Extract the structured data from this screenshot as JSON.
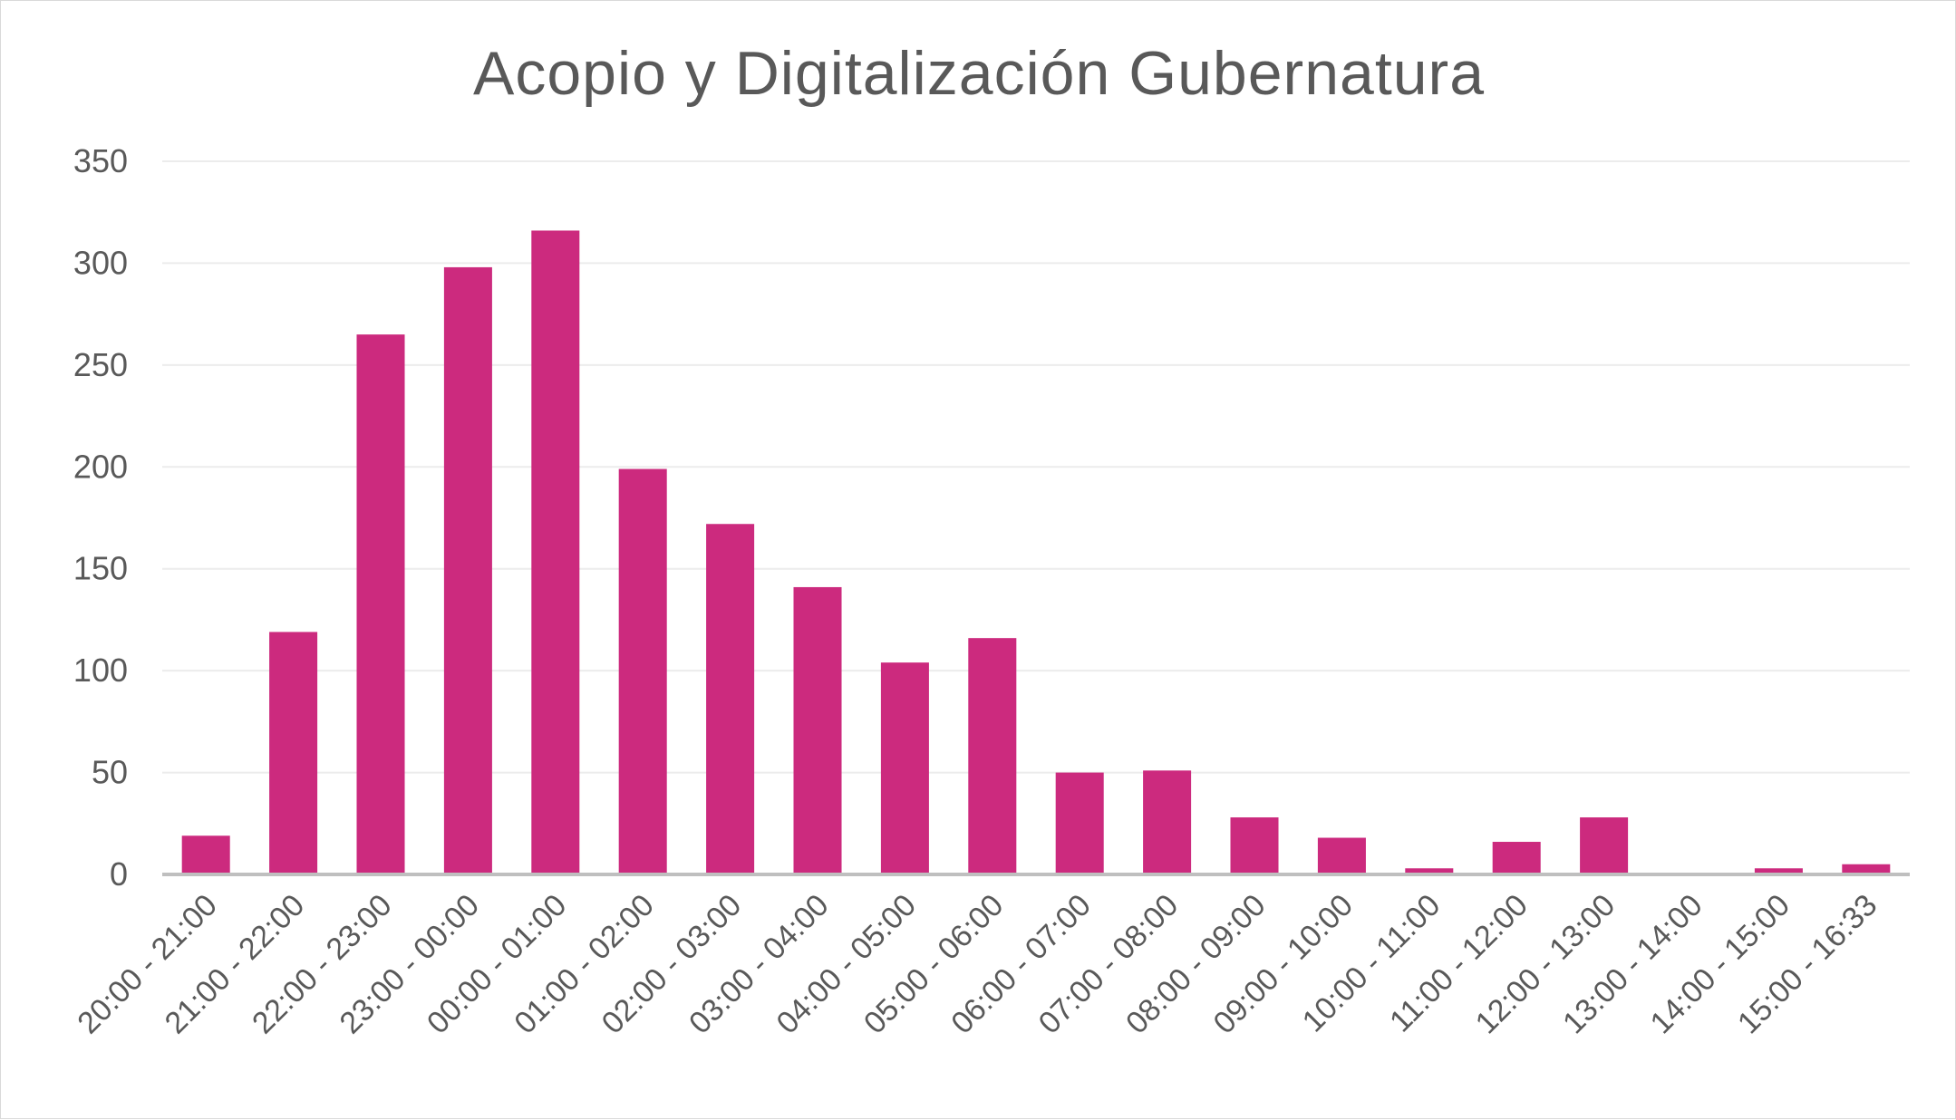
{
  "chart_data": {
    "type": "bar",
    "title": "Acopio y Digitalización Gubernatura",
    "xlabel": "",
    "ylabel": "",
    "categories": [
      "20:00 - 21:00",
      "21:00 - 22:00",
      "22:00 - 23:00",
      "23:00 - 00:00",
      "00:00 - 01:00",
      "01:00 - 02:00",
      "02:00 - 03:00",
      "03:00 - 04:00",
      "04:00 - 05:00",
      "05:00 - 06:00",
      "06:00 - 07:00",
      "07:00 - 08:00",
      "08:00 - 09:00",
      "09:00 - 10:00",
      "10:00 - 11:00",
      "11:00 - 12:00",
      "12:00 - 13:00",
      "13:00 - 14:00",
      "14:00 - 15:00",
      "15:00 - 16:33"
    ],
    "values": [
      19,
      119,
      265,
      298,
      316,
      199,
      172,
      141,
      104,
      116,
      50,
      51,
      28,
      18,
      3,
      16,
      28,
      0,
      3,
      5
    ],
    "ylim": [
      0,
      350
    ],
    "yticks": [
      0,
      50,
      100,
      150,
      200,
      250,
      300,
      350
    ],
    "grid": true,
    "legend": "none",
    "colors": {
      "bar": "#cc2a7e",
      "grid": "#ececec",
      "axis": "#bfbfbf",
      "text": "#595959"
    }
  }
}
